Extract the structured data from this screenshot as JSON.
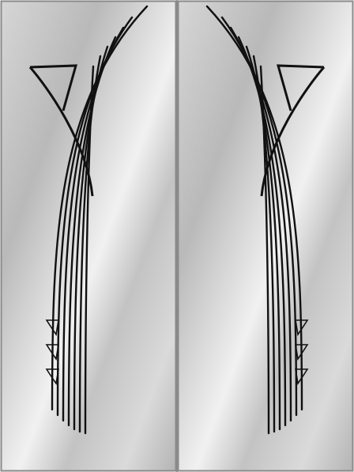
{
  "design": {
    "panel_count": 2,
    "mirrored": true,
    "background": "mirror-gradient",
    "line_color": "#111111",
    "frame_color": "#8a8a8a",
    "grooves_per_panel": 7,
    "notch_triangles_per_panel": 3,
    "corner_triangle": true
  }
}
